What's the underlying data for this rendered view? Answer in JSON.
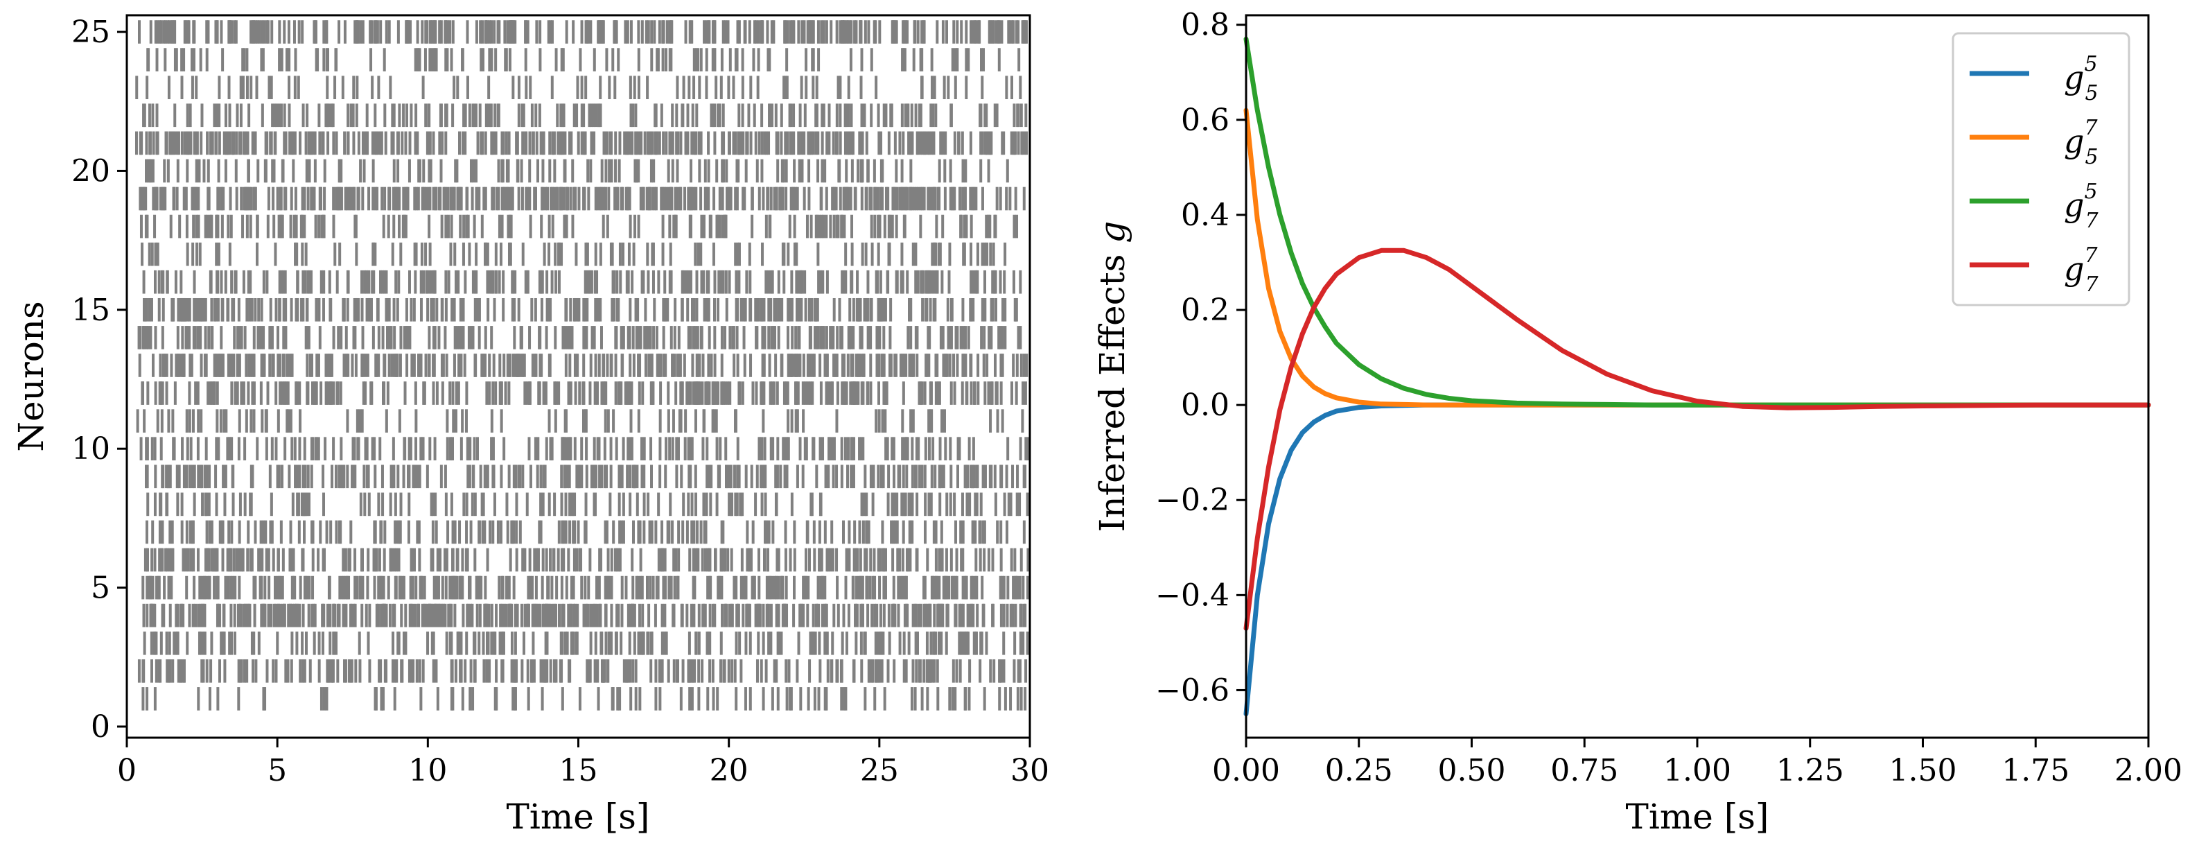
{
  "chart_data": [
    {
      "type": "raster",
      "xlabel": "Time [s]",
      "ylabel": "Neurons",
      "xlim": [
        0,
        30
      ],
      "ylim": [
        -0.4,
        25.6
      ],
      "xticks": [
        "0",
        "5",
        "10",
        "15",
        "20",
        "25",
        "30"
      ],
      "yticks": [
        "0",
        "5",
        "10",
        "15",
        "20",
        "25"
      ],
      "neurons": [
        1,
        2,
        3,
        4,
        5,
        6,
        7,
        8,
        9,
        10,
        11,
        12,
        13,
        14,
        15,
        16,
        17,
        18,
        19,
        20,
        21,
        22,
        23,
        24,
        25
      ],
      "spike_color": "#808080",
      "spike_rates_hz": [
        3,
        8,
        7,
        12,
        10,
        9,
        6,
        5,
        8,
        6,
        3,
        9,
        10,
        8,
        9,
        7,
        4,
        5,
        13,
        4,
        12,
        6,
        3,
        4,
        11
      ],
      "spike_seed": 7
    },
    {
      "type": "line",
      "xlabel": "Time [s]",
      "ylabel": "Inferred Effects ",
      "ylabel_symbol": "g",
      "xlim": [
        0,
        2
      ],
      "ylim": [
        -0.7,
        0.82
      ],
      "xticks": [
        "0.00",
        "0.25",
        "0.50",
        "0.75",
        "1.00",
        "1.25",
        "1.50",
        "1.75",
        "2.00"
      ],
      "yticks": [
        "−0.6",
        "−0.4",
        "−0.2",
        "0.0",
        "0.2",
        "0.4",
        "0.6",
        "0.8"
      ],
      "x": [
        0,
        0.025,
        0.05,
        0.075,
        0.1,
        0.125,
        0.15,
        0.175,
        0.2,
        0.25,
        0.3,
        0.35,
        0.4,
        0.45,
        0.5,
        0.6,
        0.7,
        0.8,
        0.9,
        1.0,
        1.1,
        1.2,
        1.3,
        1.4,
        1.5,
        1.75,
        2.0
      ],
      "series": [
        {
          "name": "g",
          "sub": "5",
          "sup": "5",
          "color": "#1f77b4",
          "values": [
            -0.65,
            -0.4,
            -0.25,
            -0.155,
            -0.095,
            -0.058,
            -0.036,
            -0.022,
            -0.013,
            -0.005,
            -0.002,
            -0.001,
            0,
            0,
            0,
            0,
            0,
            0,
            0,
            0,
            0,
            0,
            0,
            0,
            0,
            0,
            0
          ]
        },
        {
          "name": "g",
          "sub": "5",
          "sup": "7",
          "color": "#ff7f0e",
          "values": [
            0.62,
            0.39,
            0.245,
            0.155,
            0.097,
            0.061,
            0.038,
            0.024,
            0.015,
            0.006,
            0.002,
            0.001,
            0,
            0,
            0,
            0,
            0,
            0,
            0,
            0,
            0,
            0,
            0,
            0,
            0,
            0,
            0
          ]
        },
        {
          "name": "g",
          "sub": "7",
          "sup": "5",
          "color": "#2ca02c",
          "values": [
            0.77,
            0.62,
            0.5,
            0.4,
            0.32,
            0.255,
            0.205,
            0.165,
            0.13,
            0.085,
            0.055,
            0.035,
            0.022,
            0.014,
            0.009,
            0.004,
            0.002,
            0.001,
            0,
            0,
            0,
            0,
            0,
            0,
            0,
            0,
            0
          ]
        },
        {
          "name": "g",
          "sub": "7",
          "sup": "7",
          "color": "#d62728",
          "values": [
            -0.47,
            -0.28,
            -0.13,
            -0.01,
            0.08,
            0.15,
            0.205,
            0.245,
            0.275,
            0.31,
            0.325,
            0.325,
            0.31,
            0.285,
            0.25,
            0.18,
            0.115,
            0.065,
            0.03,
            0.008,
            -0.003,
            -0.006,
            -0.005,
            -0.003,
            -0.002,
            0,
            0
          ]
        }
      ],
      "legend_position": "top-right"
    }
  ]
}
